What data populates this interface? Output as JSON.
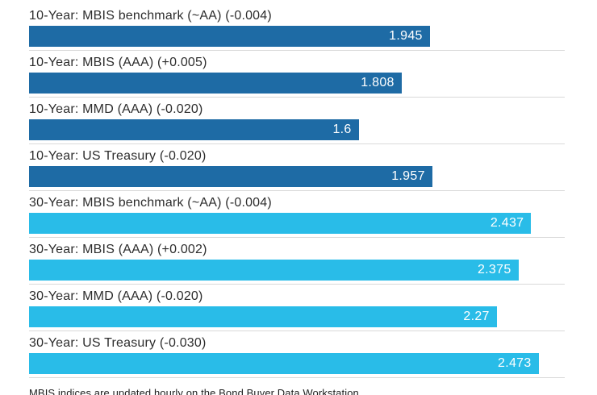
{
  "chart_data": {
    "type": "bar",
    "orientation": "horizontal",
    "title": "",
    "xlabel": "",
    "ylabel": "",
    "xlim": [
      0,
      2.6
    ],
    "grid": "per-row-baseline",
    "legend": "none",
    "value_label_position": "inside-right",
    "categories": [
      "10-Year: MBIS benchmark (~AA) (-0.004)",
      "10-Year: MBIS (AAA) (+0.005)",
      "10-Year: MMD (AAA) (-0.020)",
      "10-Year: US Treasury (-0.020)",
      "30-Year: MBIS benchmark (~AA) (-0.004)",
      "30-Year: MBIS (AAA) (+0.002)",
      "30-Year: MMD (AAA) (-0.020)",
      "30-Year: US Treasury (-0.030)"
    ],
    "values": [
      1.945,
      1.808,
      1.6,
      1.957,
      2.437,
      2.375,
      2.27,
      2.473
    ],
    "value_labels": [
      "1.945",
      "1.808",
      "1.6",
      "1.957",
      "2.437",
      "2.375",
      "2.27",
      "2.473"
    ],
    "groups": [
      "10-Year",
      "10-Year",
      "10-Year",
      "10-Year",
      "30-Year",
      "30-Year",
      "30-Year",
      "30-Year"
    ],
    "group_colors": {
      "10-Year": "#1e6ba5",
      "30-Year": "#29bce8"
    },
    "bar_colors": [
      "#1e6ba5",
      "#1e6ba5",
      "#1e6ba5",
      "#1e6ba5",
      "#29bce8",
      "#29bce8",
      "#29bce8",
      "#29bce8"
    ],
    "gridline_color": "#d9d9d9",
    "label_color": "#2d2d2d",
    "value_text_color": "#ffffff",
    "footnote": "MBIS indices are updated hourly on the Bond Buyer Data Workstation"
  }
}
